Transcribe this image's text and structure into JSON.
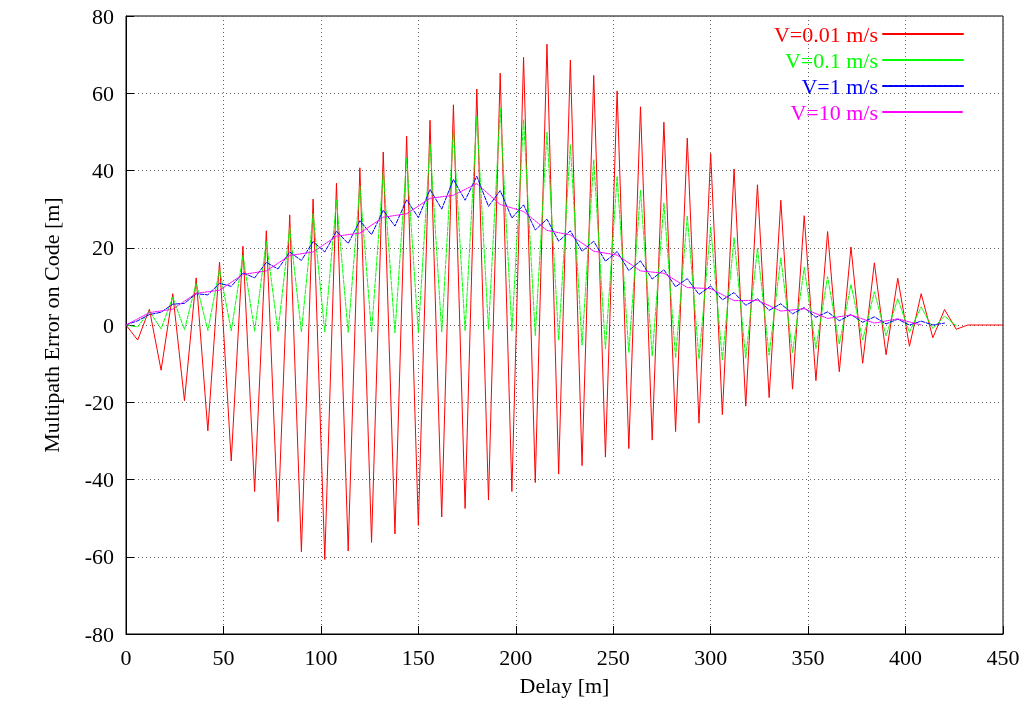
{
  "chart_data": {
    "type": "line",
    "xlabel": "Delay [m]",
    "ylabel": "Multipath Error on Code [m]",
    "xlim": [
      0,
      450
    ],
    "xticks": [
      0,
      50,
      100,
      150,
      200,
      250,
      300,
      350,
      400,
      450
    ],
    "ylim": [
      -80,
      80
    ],
    "yticks": [
      -80,
      -60,
      -40,
      -20,
      0,
      20,
      40,
      60,
      80
    ],
    "grid": true,
    "legend": "top right",
    "marker": "none",
    "x": [
      0,
      6,
      12,
      18,
      24,
      30,
      36,
      42,
      48,
      54,
      60,
      66,
      72,
      78,
      84,
      90,
      96,
      102,
      108,
      114,
      120,
      126,
      132,
      138,
      144,
      150,
      156,
      162,
      168,
      174,
      180,
      186,
      192,
      198,
      204,
      210,
      216,
      222,
      228,
      234,
      240,
      246,
      252,
      258,
      264,
      270,
      276,
      282,
      288,
      294,
      300,
      306,
      312,
      318,
      324,
      330,
      336,
      342,
      348,
      354,
      360,
      366,
      372,
      378,
      384,
      390,
      396,
      402,
      408,
      414,
      420,
      426,
      432,
      441,
      450
    ],
    "series": [
      {
        "name": "V=0.01 m/s",
        "color": "#ff0000",
        "line_style": "solid",
        "values": [
          0,
          -3.9,
          4.1,
          -11.7,
          8.1,
          -19.6,
          12.2,
          -27.4,
          16.3,
          -35.2,
          20.4,
          -43.1,
          24.4,
          -50.9,
          28.5,
          -58.7,
          32.6,
          -60.7,
          36.7,
          -58.5,
          40.7,
          -56.3,
          44.8,
          -54.1,
          48.9,
          -51.9,
          53.0,
          -49.7,
          57.0,
          -47.5,
          61.1,
          -45.3,
          65.2,
          -43.1,
          69.3,
          -40.8,
          72.7,
          -38.6,
          68.6,
          -36.4,
          64.6,
          -34.2,
          60.6,
          -32.0,
          56.5,
          -29.8,
          52.5,
          -27.6,
          48.4,
          -25.4,
          44.4,
          -23.2,
          40.4,
          -21.0,
          36.3,
          -18.8,
          32.3,
          -16.6,
          28.3,
          -14.4,
          24.2,
          -12.1,
          20.2,
          -9.9,
          16.1,
          -7.7,
          12.1,
          -5.5,
          8.1,
          -3.3,
          4.0,
          -1.1,
          0,
          0,
          0
        ]
      },
      {
        "name": "V=0.1 m/s",
        "color": "#00ff00",
        "line_style": "dashed",
        "x": [
          0,
          6,
          12,
          18,
          24,
          30,
          36,
          42,
          48,
          54,
          60,
          66,
          72,
          78,
          84,
          90,
          96,
          102,
          108,
          114,
          120,
          126,
          132,
          138,
          144,
          150,
          156,
          162,
          168,
          174,
          180,
          186,
          192,
          198,
          204,
          210,
          216,
          222,
          228,
          234,
          240,
          246,
          252,
          258,
          264,
          270,
          276,
          282,
          288,
          294,
          300,
          306,
          312,
          318,
          324,
          330,
          336,
          342,
          348,
          354,
          360,
          366,
          372,
          378,
          384,
          390,
          396,
          402,
          408,
          414,
          420,
          426
        ],
        "values": [
          0,
          -0.5,
          3.6,
          -1,
          7.2,
          -1.2,
          10.8,
          -1.4,
          14.4,
          -1.5,
          18,
          -1.6,
          21.6,
          -1.7,
          25.2,
          -1.8,
          28.8,
          -1.8,
          32.4,
          -1.9,
          36,
          -1.9,
          39.6,
          -2,
          43.2,
          -2,
          46.8,
          -1.8,
          50.4,
          -1.5,
          54,
          -1.1,
          56.2,
          -1.5,
          53.2,
          -2.7,
          49.9,
          -3.9,
          46.7,
          -5.2,
          42.8,
          -6.2,
          38.5,
          -7.1,
          34.9,
          -8.0,
          31.6,
          -8.5,
          28.3,
          -8.8,
          25.4,
          -9.0,
          22.6,
          -8.6,
          19.9,
          -7.8,
          17.4,
          -7.2,
          14.9,
          -6.1,
          12.5,
          -5.0,
          10.5,
          -3.9,
          8.6,
          -2.8,
          6.8,
          -1.9,
          4.7,
          -0.9,
          2.3,
          -0.2
        ]
      },
      {
        "name": "V=1 m/s",
        "color": "#0000ff",
        "line_style": "dashed",
        "x": [
          0,
          6,
          12,
          18,
          24,
          30,
          36,
          42,
          48,
          54,
          60,
          66,
          72,
          78,
          84,
          90,
          96,
          102,
          108,
          114,
          120,
          126,
          132,
          138,
          144,
          150,
          156,
          162,
          168,
          174,
          180,
          186,
          192,
          198,
          204,
          210,
          216,
          222,
          228,
          234,
          240,
          246,
          252,
          258,
          264,
          270,
          276,
          282,
          288,
          294,
          300,
          306,
          312,
          318,
          324,
          330,
          336,
          342,
          348,
          354,
          360,
          366,
          372,
          378,
          384,
          390,
          396,
          402,
          408,
          414,
          420
        ],
        "values": [
          0,
          1.1,
          2.7,
          3.3,
          5.4,
          5.6,
          8.1,
          7.8,
          10.8,
          10.0,
          13.5,
          12.2,
          16.2,
          14.5,
          18.9,
          16.7,
          21.6,
          18.9,
          24.3,
          21.1,
          27.0,
          23.4,
          29.7,
          25.6,
          32.4,
          27.8,
          35.1,
          30.0,
          37.7,
          32.3,
          38.5,
          30.7,
          34.8,
          27.7,
          31.1,
          24.6,
          27.4,
          21.7,
          24.4,
          19.1,
          21.7,
          16.5,
          19.0,
          14.1,
          16.6,
          11.9,
          14.3,
          9.9,
          12.0,
          7.9,
          10.1,
          6.5,
          8.4,
          5.1,
          6.8,
          3.8,
          5.5,
          2.9,
          4.5,
          2.0,
          3.4,
          1.1,
          2.7,
          0.7,
          2.1,
          0.3,
          1.5,
          0,
          1.0,
          0,
          0.5
        ]
      },
      {
        "name": "V=10 m/s",
        "color": "#ff00ff",
        "line_style": "dotted",
        "x": [
          0,
          12,
          24,
          36,
          48,
          60,
          72,
          84,
          96,
          108,
          120,
          132,
          144,
          156,
          168,
          180,
          192,
          204,
          216,
          228,
          240,
          252,
          264,
          276,
          288,
          300,
          312,
          324,
          336,
          348,
          360,
          372,
          384,
          396,
          408
        ],
        "values": [
          0,
          3.2,
          4.1,
          8.2,
          9.0,
          13.1,
          14.0,
          18.0,
          18.9,
          23.0,
          23.8,
          27.9,
          28.8,
          32.8,
          33.6,
          36.6,
          31.2,
          29.4,
          24.5,
          23.3,
          19.1,
          18.1,
          14.0,
          13.4,
          9.7,
          9.4,
          6.3,
          6.4,
          3.6,
          4.2,
          1.7,
          2.6,
          0.5,
          1.6,
          0
        ]
      }
    ]
  }
}
